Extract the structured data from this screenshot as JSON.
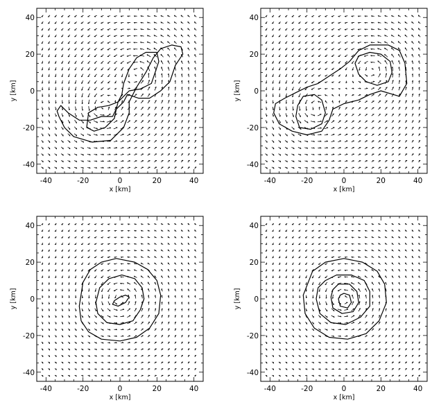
{
  "chart_data": [
    {
      "type": "vector-field",
      "panel": "top-left",
      "xlabel": "x [km]",
      "ylabel": "y [km]",
      "xlim": [
        -45,
        45
      ],
      "ylim": [
        -45,
        45
      ],
      "xticks": [
        -40,
        -20,
        0,
        20,
        40
      ],
      "yticks": [
        -40,
        -20,
        0,
        20,
        40
      ],
      "vortices": [
        {
          "x": 10,
          "y": 10,
          "strength": 1.0
        },
        {
          "x": -10,
          "y": -10,
          "strength": 1.0
        }
      ],
      "contours": [
        {
          "points": [
            [
              -33,
              -14
            ],
            [
              -30,
              -20
            ],
            [
              -25,
              -25
            ],
            [
              -15,
              -28
            ],
            [
              -5,
              -27
            ],
            [
              2,
              -20
            ],
            [
              5,
              -12
            ],
            [
              5,
              -6
            ],
            [
              9,
              2
            ],
            [
              14,
              10
            ],
            [
              18,
              18
            ],
            [
              22,
              23
            ],
            [
              28,
              25
            ],
            [
              33,
              24
            ],
            [
              34,
              20
            ],
            [
              30,
              14
            ],
            [
              27,
              5
            ],
            [
              22,
              0
            ],
            [
              16,
              -4
            ],
            [
              10,
              -4
            ],
            [
              4,
              -2
            ],
            [
              2,
              -6
            ],
            [
              -2,
              -10
            ],
            [
              -4,
              -14
            ],
            [
              -10,
              -14
            ],
            [
              -16,
              -16
            ],
            [
              -22,
              -16
            ],
            [
              -28,
              -12
            ],
            [
              -32,
              -8
            ],
            [
              -34,
              -11
            ]
          ]
        },
        {
          "points": [
            [
              -18,
              -20
            ],
            [
              -14,
              -22
            ],
            [
              -8,
              -20
            ],
            [
              -3,
              -15
            ],
            [
              -2,
              -10
            ],
            [
              -1,
              -6
            ],
            [
              1,
              -2
            ],
            [
              2,
              4
            ],
            [
              5,
              12
            ],
            [
              9,
              18
            ],
            [
              14,
              21
            ],
            [
              20,
              21
            ],
            [
              21,
              16
            ],
            [
              19,
              10
            ],
            [
              17,
              4
            ],
            [
              11,
              1
            ],
            [
              5,
              0
            ],
            [
              2,
              -3
            ],
            [
              -1,
              -6
            ],
            [
              -6,
              -8
            ],
            [
              -12,
              -9
            ],
            [
              -17,
              -12
            ]
          ]
        }
      ]
    },
    {
      "type": "vector-field",
      "panel": "top-right",
      "xlabel": "x [km]",
      "ylabel": "y [km]",
      "xlim": [
        -45,
        45
      ],
      "ylim": [
        -45,
        45
      ],
      "xticks": [
        -40,
        -20,
        0,
        20,
        40
      ],
      "yticks": [
        -40,
        -20,
        0,
        20,
        40
      ],
      "vortices": [
        {
          "x": 16,
          "y": 12,
          "strength": 1.0
        },
        {
          "x": -16,
          "y": -10,
          "strength": 1.0
        }
      ],
      "contours": [
        {
          "points": [
            [
              -38,
              -12
            ],
            [
              -35,
              -18
            ],
            [
              -28,
              -22
            ],
            [
              -20,
              -24
            ],
            [
              -12,
              -22
            ],
            [
              -8,
              -16
            ],
            [
              -6,
              -10
            ],
            [
              0,
              -7
            ],
            [
              8,
              -5
            ],
            [
              14,
              -2
            ],
            [
              20,
              0
            ],
            [
              30,
              -3
            ],
            [
              34,
              4
            ],
            [
              33,
              15
            ],
            [
              30,
              22
            ],
            [
              24,
              25
            ],
            [
              14,
              25
            ],
            [
              8,
              22
            ],
            [
              3,
              16
            ],
            [
              -2,
              12
            ],
            [
              -8,
              8
            ],
            [
              -14,
              4
            ],
            [
              -20,
              2
            ],
            [
              -26,
              -1
            ],
            [
              -32,
              -4
            ],
            [
              -37,
              -7
            ]
          ]
        },
        {
          "points": [
            [
              -25,
              -8
            ],
            [
              -26,
              -14
            ],
            [
              -24,
              -20
            ],
            [
              -18,
              -21
            ],
            [
              -12,
              -18
            ],
            [
              -10,
              -12
            ],
            [
              -12,
              -5
            ],
            [
              -16,
              -2
            ],
            [
              -22,
              -3
            ]
          ]
        },
        {
          "points": [
            [
              6,
              15
            ],
            [
              8,
              19
            ],
            [
              14,
              21
            ],
            [
              20,
              20
            ],
            [
              25,
              16
            ],
            [
              26,
              10
            ],
            [
              24,
              5
            ],
            [
              18,
              3
            ],
            [
              12,
              5
            ],
            [
              8,
              9
            ]
          ]
        }
      ]
    },
    {
      "type": "vector-field",
      "panel": "bottom-left",
      "xlabel": "x [km]",
      "ylabel": "y [km]",
      "xlim": [
        -45,
        45
      ],
      "ylim": [
        -45,
        45
      ],
      "xticks": [
        -40,
        -20,
        0,
        20,
        40
      ],
      "yticks": [
        -40,
        -20,
        0,
        20,
        40
      ],
      "vortices": [
        {
          "x": 0,
          "y": 0,
          "strength": 1.0
        }
      ],
      "contours": [
        {
          "points": [
            [
              -22,
              -4
            ],
            [
              -21,
              -12
            ],
            [
              -17,
              -18
            ],
            [
              -10,
              -22
            ],
            [
              0,
              -23
            ],
            [
              9,
              -21
            ],
            [
              16,
              -16
            ],
            [
              21,
              -8
            ],
            [
              22,
              2
            ],
            [
              20,
              10
            ],
            [
              15,
              16
            ],
            [
              8,
              20
            ],
            [
              -2,
              22
            ],
            [
              -10,
              20
            ],
            [
              -16,
              16
            ],
            [
              -20,
              9
            ]
          ]
        },
        {
          "points": [
            [
              -13,
              -2
            ],
            [
              -12,
              -8
            ],
            [
              -7,
              -13
            ],
            [
              0,
              -14
            ],
            [
              7,
              -12
            ],
            [
              11,
              -6
            ],
            [
              13,
              0
            ],
            [
              12,
              6
            ],
            [
              8,
              11
            ],
            [
              1,
              13
            ],
            [
              -6,
              11
            ],
            [
              -11,
              6
            ]
          ]
        },
        {
          "points": [
            [
              -4,
              -3
            ],
            [
              -1,
              -4
            ],
            [
              3,
              -2
            ],
            [
              5,
              1
            ],
            [
              3,
              2
            ],
            [
              0,
              1
            ],
            [
              -3,
              -1
            ]
          ]
        }
      ]
    },
    {
      "type": "vector-field",
      "panel": "bottom-right",
      "xlabel": "x [km]",
      "ylabel": "y [km]",
      "xlim": [
        -45,
        45
      ],
      "ylim": [
        -45,
        45
      ],
      "xticks": [
        -40,
        -20,
        0,
        20,
        40
      ],
      "yticks": [
        -40,
        -20,
        0,
        20,
        40
      ],
      "vortices": [
        {
          "x": 0,
          "y": 0,
          "strength": 1.0
        }
      ],
      "contours": [
        {
          "points": [
            [
              -22,
              2
            ],
            [
              -21,
              -8
            ],
            [
              -16,
              -16
            ],
            [
              -8,
              -21
            ],
            [
              2,
              -22
            ],
            [
              12,
              -19
            ],
            [
              19,
              -12
            ],
            [
              23,
              -2
            ],
            [
              22,
              8
            ],
            [
              18,
              15
            ],
            [
              10,
              20
            ],
            [
              0,
              22
            ],
            [
              -10,
              20
            ],
            [
              -17,
              15
            ]
          ]
        },
        {
          "points": [
            [
              -15,
              0
            ],
            [
              -13,
              -8
            ],
            [
              -7,
              -13
            ],
            [
              1,
              -14
            ],
            [
              9,
              -10
            ],
            [
              14,
              -4
            ],
            [
              14,
              4
            ],
            [
              11,
              10
            ],
            [
              4,
              13
            ],
            [
              -4,
              13
            ],
            [
              -10,
              10
            ],
            [
              -14,
              6
            ]
          ]
        },
        {
          "points": [
            [
              -7,
              1
            ],
            [
              -6,
              -5
            ],
            [
              -1,
              -8
            ],
            [
              5,
              -7
            ],
            [
              8,
              -2
            ],
            [
              7,
              4
            ],
            [
              3,
              8
            ],
            [
              -3,
              8
            ],
            [
              -6,
              5
            ]
          ]
        },
        {
          "points": [
            [
              -3,
              0
            ],
            [
              -2,
              -4
            ],
            [
              2,
              -5
            ],
            [
              4,
              -2
            ],
            [
              3,
              2
            ],
            [
              0,
              3
            ],
            [
              -2,
              2
            ]
          ]
        }
      ]
    }
  ]
}
